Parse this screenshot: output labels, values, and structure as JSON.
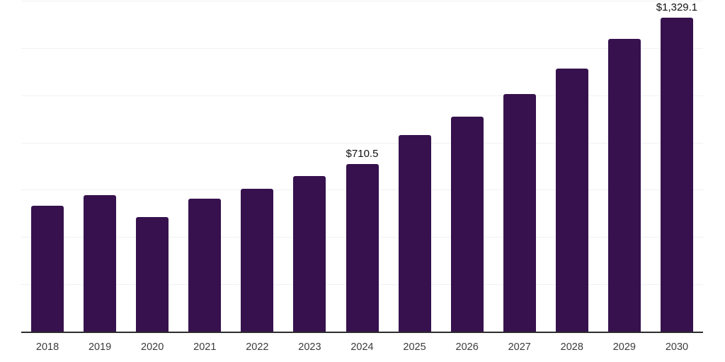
{
  "chart_data": {
    "type": "bar",
    "title": "",
    "xlabel": "",
    "ylabel": "",
    "categories": [
      "2018",
      "2019",
      "2020",
      "2021",
      "2022",
      "2023",
      "2024",
      "2025",
      "2026",
      "2027",
      "2028",
      "2029",
      "2030"
    ],
    "values": [
      532,
      578,
      485,
      561,
      604,
      658,
      710.5,
      831,
      910,
      1005,
      1113,
      1238,
      1329.1
    ],
    "data_labels": [
      "",
      "",
      "",
      "",
      "",
      "",
      "$710.5",
      "",
      "",
      "",
      "",
      "",
      "$1,329.1"
    ],
    "ylim": [
      0,
      1400
    ],
    "gridline_step": 200,
    "grid": "horizontal",
    "legend": "none",
    "y_tick_labels_visible": false,
    "bar_color": "#36114D",
    "gridline_color": "#f1f1f3",
    "axis_line_color": "#2d2d2d",
    "tick_label_color": "#3b3b3b",
    "value_label_color": "#111111",
    "background_color": "#ffffff"
  }
}
